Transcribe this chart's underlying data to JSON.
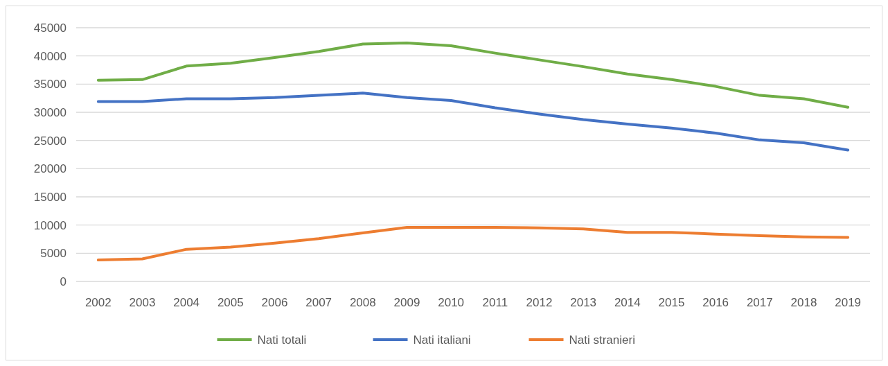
{
  "chart_data": {
    "type": "line",
    "categories": [
      "2002",
      "2003",
      "2004",
      "2005",
      "2006",
      "2007",
      "2008",
      "2009",
      "2010",
      "2011",
      "2012",
      "2013",
      "2014",
      "2015",
      "2016",
      "2017",
      "2018",
      "2019"
    ],
    "series": [
      {
        "name": "Nati totali",
        "color": "#70ad47",
        "values": [
          35700,
          35800,
          38200,
          38700,
          39700,
          40800,
          42100,
          42300,
          41800,
          40500,
          39300,
          38100,
          36800,
          35800,
          34600,
          33000,
          32400,
          30900
        ]
      },
      {
        "name": "Nati italiani",
        "color": "#4472c4",
        "values": [
          31900,
          31900,
          32400,
          32400,
          32600,
          33000,
          33400,
          32600,
          32100,
          30800,
          29700,
          28700,
          27900,
          27200,
          26300,
          25100,
          24600,
          23300
        ]
      },
      {
        "name": "Nati stranieri",
        "color": "#ed7d31",
        "values": [
          3800,
          4000,
          5700,
          6100,
          6800,
          7600,
          8600,
          9600,
          9600,
          9600,
          9500,
          9300,
          8700,
          8700,
          8400,
          8100,
          7900,
          7800
        ]
      }
    ],
    "ylim": [
      0,
      45000
    ],
    "yticks": [
      0,
      5000,
      10000,
      15000,
      20000,
      25000,
      30000,
      35000,
      40000,
      45000
    ],
    "grid": "y",
    "legend": "bottom",
    "marker": "none",
    "line_style": "solid"
  }
}
